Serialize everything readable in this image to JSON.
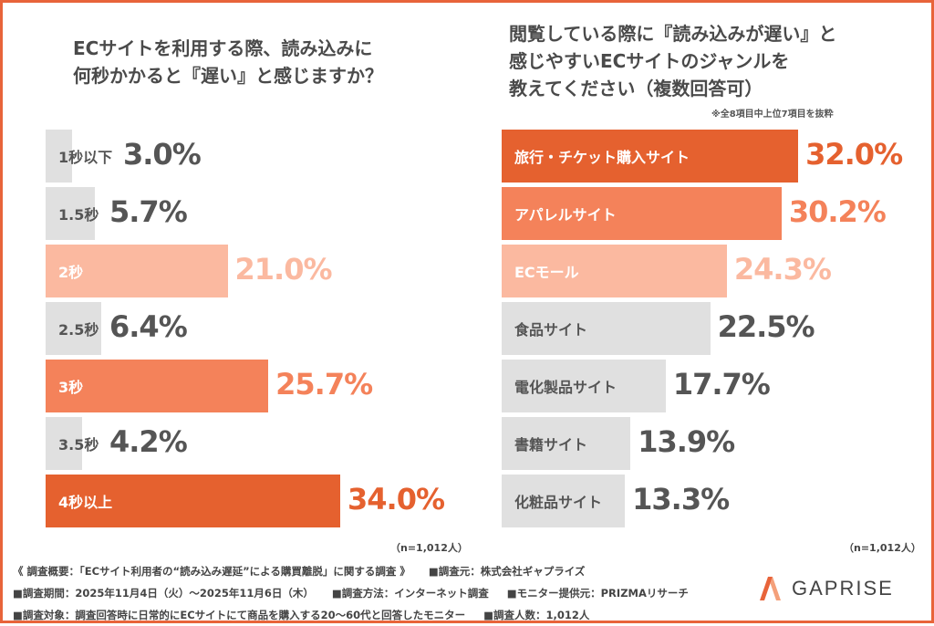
{
  "chart_data": [
    {
      "type": "bar",
      "orientation": "horizontal",
      "title": "ECサイトを利用する際、読み込みに何秒かかると『遅い』と感じますか？",
      "categories": [
        "1秒以下",
        "1.5秒",
        "2秒",
        "2.5秒",
        "3秒",
        "3.5秒",
        "4秒以上"
      ],
      "values": [
        3.0,
        5.7,
        21.0,
        6.4,
        25.7,
        4.2,
        34.0
      ],
      "labels": [
        "3.0%",
        "5.7%",
        "21.0%",
        "6.4%",
        "25.7%",
        "4.2%",
        "34.0%"
      ],
      "colors": [
        "#e0e0e0",
        "#e0e0e0",
        "#fbb9a0",
        "#e0e0e0",
        "#f4825a",
        "#e0e0e0",
        "#e5612f"
      ],
      "label_colors": [
        "#555555",
        "#555555",
        "#ffffff",
        "#555555",
        "#ffffff",
        "#555555",
        "#ffffff"
      ],
      "value_colors": [
        "#555555",
        "#555555",
        "#fbb9a0",
        "#555555",
        "#f4825a",
        "#555555",
        "#e5612f"
      ],
      "sample": "（n=1,012人）",
      "xlim": [
        0,
        34
      ]
    },
    {
      "type": "bar",
      "orientation": "horizontal",
      "title": "閲覧している際に『読み込みが遅い』と感じやすいECサイトのジャンルを教えてください（複数回答可）",
      "note": "※全8項目中上位7項目を抜粋",
      "categories": [
        "旅行・チケット購入サイト",
        "アパレルサイト",
        "ECモール",
        "食品サイト",
        "電化製品サイト",
        "書籍サイト",
        "化粧品サイト"
      ],
      "values": [
        32.0,
        30.2,
        24.3,
        22.5,
        17.7,
        13.9,
        13.3
      ],
      "labels": [
        "32.0%",
        "30.2%",
        "24.3%",
        "22.5%",
        "17.7%",
        "13.9%",
        "13.3%"
      ],
      "colors": [
        "#e5612f",
        "#f4825a",
        "#fbb9a0",
        "#e0e0e0",
        "#e0e0e0",
        "#e0e0e0",
        "#e0e0e0"
      ],
      "label_colors": [
        "#ffffff",
        "#ffffff",
        "#ffffff",
        "#555555",
        "#555555",
        "#555555",
        "#555555"
      ],
      "value_colors": [
        "#e5612f",
        "#f4825a",
        "#fbb9a0",
        "#555555",
        "#555555",
        "#555555",
        "#555555"
      ],
      "sample": "（n=1,012人）",
      "xlim": [
        0,
        32
      ]
    }
  ],
  "titles": {
    "left_line1": "ECサイトを利用する際、読み込みに",
    "left_line2": "何秒かかると『遅い』と感じますか？",
    "right_line1": "閲覧している際に『読み込みが遅い』と",
    "right_line2": "感じやすいECサイトのジャンルを",
    "right_line3": "教えてください（複数回答可）"
  },
  "footer": {
    "overview": "《 調査概要：「ECサイト利用者の“読み込み遅延”による購買離脱」に関する調査 》",
    "sponsor": "■調査元：株式会社ギャプライズ",
    "period": "■調査期間：2025年11月4日（火）～2025年11月6日（木）",
    "method": "■調査方法：インターネット調査",
    "panel": "■モニター提供元：PRIZMAリサーチ",
    "target": "■調査対象：調査回答時に日常的にECサイトにて商品を購入する20～60代と回答したモニター",
    "count": "■調査人数：1,012人"
  },
  "logo": {
    "text": "GAPRISE",
    "color": "#e8643a"
  }
}
